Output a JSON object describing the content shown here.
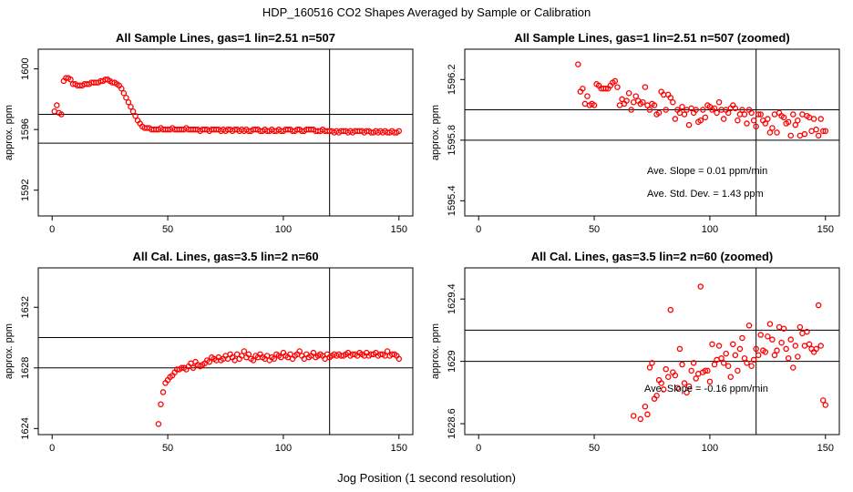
{
  "figure": {
    "title": "HDP_160516  CO2 Shapes Averaged by Sample or Calibration",
    "xlabel": "Jog Position (1 second resolution)"
  },
  "colors": {
    "points": "#ff0000",
    "axes": "#000000",
    "background": "#ffffff"
  },
  "chart_data": [
    {
      "type": "scatter",
      "title": "All Sample Lines, gas=1 lin=2.51 n=507",
      "xlabel": "Jog Position (1 second resolution)",
      "ylabel": "approx. ppm",
      "xlim": [
        -6,
        156
      ],
      "ylim": [
        1590.3,
        1601.3
      ],
      "xticks": [
        0,
        50,
        100,
        150
      ],
      "yticks": [
        1592,
        1596,
        1600
      ],
      "vline": 120,
      "hlines": [
        1597.0,
        1595.1
      ],
      "x": [
        1,
        2,
        3,
        4,
        5,
        6,
        7,
        8,
        9,
        10,
        11,
        12,
        13,
        14,
        15,
        16,
        17,
        18,
        19,
        20,
        21,
        22,
        23,
        24,
        25,
        26,
        27,
        28,
        29,
        30,
        31,
        32,
        33,
        34,
        35,
        36,
        37,
        38,
        39,
        40,
        41,
        42,
        43,
        44,
        45,
        46,
        47,
        48,
        49,
        50,
        51,
        52,
        53,
        54,
        55,
        56,
        57,
        58,
        59,
        60,
        61,
        62,
        63,
        64,
        65,
        66,
        67,
        68,
        69,
        70,
        71,
        72,
        73,
        74,
        75,
        76,
        77,
        78,
        79,
        80,
        81,
        82,
        83,
        84,
        85,
        86,
        87,
        88,
        89,
        90,
        91,
        92,
        93,
        94,
        95,
        96,
        97,
        98,
        99,
        100,
        101,
        102,
        103,
        104,
        105,
        106,
        107,
        108,
        109,
        110,
        111,
        112,
        113,
        114,
        115,
        116,
        117,
        118,
        119,
        120,
        121,
        122,
        123,
        124,
        125,
        126,
        127,
        128,
        129,
        130,
        131,
        132,
        133,
        134,
        135,
        136,
        137,
        138,
        139,
        140,
        141,
        142,
        143,
        144,
        145,
        146,
        147,
        148,
        149,
        150
      ],
      "y": [
        1597.2,
        1597.6,
        1597.1,
        1597.0,
        1599.2,
        1599.4,
        1599.4,
        1599.3,
        1599.0,
        1599.0,
        1598.9,
        1598.9,
        1598.9,
        1599.0,
        1599.0,
        1599.0,
        1599.1,
        1599.1,
        1599.1,
        1599.1,
        1599.2,
        1599.2,
        1599.3,
        1599.3,
        1599.2,
        1599.1,
        1599.1,
        1599.0,
        1598.9,
        1598.7,
        1598.4,
        1598.1,
        1597.8,
        1597.5,
        1597.2,
        1596.9,
        1596.6,
        1596.4,
        1596.2,
        1596.1,
        1596.1,
        1596.1,
        1596.0,
        1596.0,
        1596.0,
        1596.0,
        1596.1,
        1596.0,
        1596.0,
        1596.0,
        1596.0,
        1596.1,
        1596.0,
        1596.0,
        1596.0,
        1596.0,
        1596.0,
        1596.1,
        1596.0,
        1596.0,
        1596.0,
        1596.0,
        1596.0,
        1595.9,
        1596.0,
        1596.0,
        1596.0,
        1595.9,
        1596.0,
        1596.0,
        1596.0,
        1596.0,
        1595.9,
        1596.0,
        1595.9,
        1596.0,
        1596.0,
        1595.9,
        1596.0,
        1596.0,
        1595.9,
        1596.0,
        1595.9,
        1596.0,
        1595.9,
        1595.9,
        1596.0,
        1596.0,
        1596.0,
        1595.9,
        1595.9,
        1596.0,
        1595.9,
        1595.9,
        1596.0,
        1595.9,
        1595.9,
        1596.0,
        1595.9,
        1595.9,
        1596.0,
        1596.0,
        1596.0,
        1595.9,
        1595.9,
        1596.0,
        1596.0,
        1595.9,
        1595.9,
        1596.0,
        1596.0,
        1596.0,
        1596.0,
        1595.9,
        1595.9,
        1595.9,
        1596.0,
        1595.9,
        1595.9,
        1595.9,
        1595.9,
        1595.8,
        1595.9,
        1595.8,
        1595.9,
        1595.9,
        1595.9,
        1595.8,
        1595.9,
        1595.8,
        1595.9,
        1595.9,
        1595.9,
        1595.9,
        1595.8,
        1595.9,
        1595.9,
        1595.8,
        1595.8,
        1595.9,
        1595.8,
        1595.9,
        1595.8,
        1595.9,
        1595.8,
        1595.8,
        1595.9,
        1595.8,
        1595.8,
        1595.9
      ]
    },
    {
      "type": "scatter",
      "title": "All Sample Lines, gas=1 lin=2.51 n=507 (zoomed)",
      "xlabel": "Jog Position (1 second resolution)",
      "ylabel": "approx. ppm",
      "xlim": [
        -6,
        156
      ],
      "ylim": [
        1595.3,
        1596.4
      ],
      "xticks": [
        0,
        50,
        100,
        150
      ],
      "yticks": [
        1595.4,
        1595.8,
        1596.2
      ],
      "vline": 120,
      "hlines": [
        1596.0,
        1595.8
      ],
      "annotations": [
        "Ave. Slope =  0.01  ppm/min",
        "Ave. Std. Dev. =  1.43  ppm"
      ],
      "x": [
        43,
        44,
        45,
        46,
        47,
        48,
        49,
        50,
        51,
        52,
        53,
        54,
        55,
        56,
        57,
        58,
        59,
        60,
        61,
        62,
        63,
        64,
        65,
        66,
        67,
        68,
        69,
        70,
        71,
        72,
        73,
        74,
        75,
        76,
        77,
        78,
        79,
        80,
        81,
        82,
        83,
        84,
        85,
        86,
        87,
        88,
        89,
        90,
        91,
        92,
        93,
        94,
        95,
        96,
        97,
        98,
        99,
        100,
        101,
        102,
        103,
        104,
        105,
        106,
        107,
        108,
        109,
        110,
        111,
        112,
        113,
        114,
        115,
        116,
        117,
        118,
        119,
        120,
        121,
        122,
        123,
        124,
        125,
        126,
        127,
        128,
        129,
        130,
        131,
        132,
        133,
        134,
        135,
        136,
        137,
        138,
        139,
        140,
        141,
        142,
        143,
        144,
        145,
        146,
        147,
        148,
        149,
        150
      ],
      "y": [
        1596.3,
        1596.12,
        1596.14,
        1596.04,
        1596.09,
        1596.03,
        1596.04,
        1596.03,
        1596.17,
        1596.16,
        1596.14,
        1596.14,
        1596.14,
        1596.14,
        1596.16,
        1596.18,
        1596.19,
        1596.15,
        1596.03,
        1596.07,
        1596.04,
        1596.06,
        1596.11,
        1596.0,
        1596.05,
        1596.09,
        1596.06,
        1596.04,
        1596.05,
        1596.15,
        1596.03,
        1596.0,
        1596.04,
        1596.03,
        1595.97,
        1595.98,
        1596.12,
        1596.1,
        1596.0,
        1596.1,
        1596.08,
        1596.05,
        1595.94,
        1596.0,
        1595.98,
        1596.02,
        1595.97,
        1596.0,
        1595.9,
        1596.01,
        1595.98,
        1596.0,
        1595.92,
        1595.93,
        1596.0,
        1595.95,
        1596.03,
        1596.02,
        1596.0,
        1596.01,
        1595.98,
        1596.05,
        1596.0,
        1595.94,
        1596.0,
        1595.98,
        1596.01,
        1596.03,
        1596.01,
        1595.93,
        1595.97,
        1596.0,
        1595.97,
        1595.91,
        1596.0,
        1595.98,
        1595.93,
        1595.89,
        1595.97,
        1595.97,
        1595.93,
        1595.91,
        1595.94,
        1595.85,
        1595.88,
        1595.97,
        1595.85,
        1595.98,
        1595.96,
        1595.95,
        1595.91,
        1595.92,
        1595.83,
        1595.97,
        1595.9,
        1595.93,
        1595.83,
        1595.97,
        1595.84,
        1595.96,
        1595.95,
        1595.86,
        1595.94,
        1595.87,
        1595.83,
        1595.94,
        1595.86,
        1595.86
      ]
    },
    {
      "type": "scatter",
      "title": "All Cal. Lines, gas=3.5 lin=2 n=60",
      "xlabel": "Jog Position (1 second resolution)",
      "ylabel": "approx. ppm",
      "xlim": [
        -6,
        156
      ],
      "ylim": [
        1623.6,
        1634.6
      ],
      "xticks": [
        0,
        50,
        100,
        150
      ],
      "yticks": [
        1624,
        1628,
        1632
      ],
      "vline": 120,
      "hlines": [
        1630.0,
        1628.0
      ],
      "x": [
        46,
        47,
        48,
        49,
        50,
        51,
        52,
        53,
        54,
        55,
        56,
        57,
        58,
        59,
        60,
        61,
        62,
        63,
        64,
        65,
        66,
        67,
        68,
        69,
        70,
        71,
        72,
        73,
        74,
        75,
        76,
        77,
        78,
        79,
        80,
        81,
        82,
        83,
        84,
        85,
        86,
        87,
        88,
        89,
        90,
        91,
        92,
        93,
        94,
        95,
        96,
        97,
        98,
        99,
        100,
        101,
        102,
        103,
        104,
        105,
        106,
        107,
        108,
        109,
        110,
        111,
        112,
        113,
        114,
        115,
        116,
        117,
        118,
        119,
        120,
        121,
        122,
        123,
        124,
        125,
        126,
        127,
        128,
        129,
        130,
        131,
        132,
        133,
        134,
        135,
        136,
        137,
        138,
        139,
        140,
        141,
        142,
        143,
        144,
        145,
        146,
        147,
        148,
        149,
        150
      ],
      "y": [
        1624.3,
        1625.6,
        1626.4,
        1627.0,
        1627.2,
        1627.4,
        1627.5,
        1627.7,
        1627.9,
        1627.9,
        1628.0,
        1628.0,
        1627.9,
        1628.1,
        1628.3,
        1628.0,
        1628.4,
        1628.2,
        1628.1,
        1628.2,
        1628.3,
        1628.5,
        1628.4,
        1628.7,
        1628.6,
        1628.5,
        1628.7,
        1628.5,
        1628.6,
        1628.8,
        1628.6,
        1628.9,
        1628.7,
        1628.5,
        1628.9,
        1628.6,
        1628.8,
        1629.1,
        1628.7,
        1628.9,
        1628.6,
        1628.5,
        1628.8,
        1628.7,
        1628.9,
        1628.7,
        1628.6,
        1628.8,
        1628.5,
        1628.7,
        1628.6,
        1628.9,
        1628.8,
        1628.7,
        1629.0,
        1628.8,
        1628.7,
        1628.9,
        1628.6,
        1628.8,
        1628.9,
        1629.1,
        1628.8,
        1628.6,
        1628.9,
        1628.7,
        1628.8,
        1629.0,
        1628.7,
        1628.8,
        1628.9,
        1628.8,
        1628.6,
        1628.9,
        1628.7,
        1628.8,
        1628.9,
        1628.8,
        1628.9,
        1628.8,
        1628.8,
        1628.9,
        1629.0,
        1628.8,
        1628.9,
        1628.9,
        1628.8,
        1629.0,
        1628.9,
        1628.8,
        1629.0,
        1628.8,
        1628.9,
        1628.9,
        1629.0,
        1628.8,
        1628.9,
        1628.9,
        1628.8,
        1629.1,
        1628.8,
        1628.9,
        1628.9,
        1628.8,
        1628.6
      ]
    },
    {
      "type": "scatter",
      "title": "All Cal. Lines, gas=3.5 lin=2 n=60 (zoomed)",
      "xlabel": "Jog Position (1 second resolution)",
      "ylabel": "approx. ppm",
      "xlim": [
        -6,
        156
      ],
      "ylim": [
        1628.53,
        1629.6
      ],
      "xticks": [
        0,
        50,
        100,
        150
      ],
      "yticks": [
        1628.6,
        1629.0,
        1629.4
      ],
      "vline": 120,
      "hlines": [
        1629.2,
        1629.0
      ],
      "annotations": [
        "Ave. Slope =  -0.16  ppm/min"
      ],
      "x": [
        67,
        70,
        72,
        73,
        74,
        75,
        76,
        77,
        78,
        79,
        80,
        81,
        82,
        83,
        84,
        85,
        86,
        87,
        88,
        89,
        90,
        91,
        92,
        93,
        94,
        95,
        96,
        97,
        98,
        99,
        100,
        101,
        102,
        103,
        104,
        105,
        106,
        107,
        108,
        109,
        110,
        111,
        112,
        113,
        114,
        115,
        116,
        117,
        118,
        119,
        120,
        121,
        122,
        123,
        124,
        125,
        126,
        127,
        128,
        129,
        130,
        131,
        132,
        133,
        134,
        135,
        136,
        137,
        138,
        139,
        140,
        141,
        142,
        143,
        144,
        145,
        146,
        147,
        148,
        149,
        150
      ],
      "y": [
        1628.65,
        1628.63,
        1628.71,
        1628.66,
        1628.96,
        1628.99,
        1628.76,
        1628.78,
        1628.88,
        1628.86,
        1628.82,
        1628.95,
        1628.9,
        1629.33,
        1628.93,
        1628.91,
        1628.83,
        1629.08,
        1628.98,
        1628.86,
        1628.8,
        1628.84,
        1628.94,
        1628.99,
        1628.89,
        1628.92,
        1629.48,
        1628.93,
        1628.94,
        1628.94,
        1628.87,
        1629.11,
        1628.98,
        1629.01,
        1629.1,
        1629.02,
        1628.99,
        1629.05,
        1628.97,
        1628.9,
        1629.11,
        1629.04,
        1628.94,
        1629.08,
        1629.15,
        1629.02,
        1628.99,
        1629.23,
        1628.97,
        1629.01,
        1629.08,
        1629.04,
        1629.17,
        1629.07,
        1629.06,
        1629.16,
        1629.24,
        1629.14,
        1629.04,
        1629.07,
        1629.22,
        1629.12,
        1629.21,
        1629.08,
        1629.02,
        1629.14,
        1628.96,
        1629.1,
        1629.03,
        1629.22,
        1629.18,
        1629.1,
        1629.19,
        1629.11,
        1629.08,
        1629.06,
        1629.08,
        1629.36,
        1629.1,
        1628.75,
        1628.72
      ]
    }
  ]
}
